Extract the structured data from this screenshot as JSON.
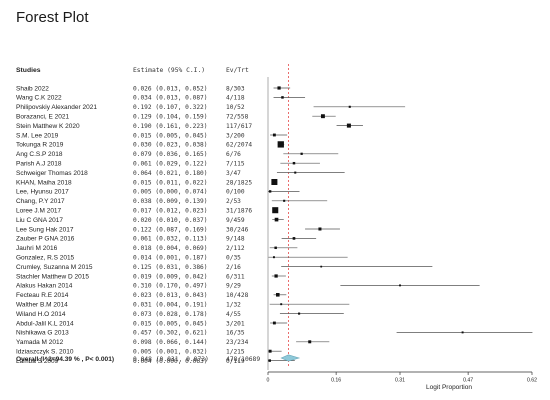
{
  "page": {
    "title": "Forest Plot"
  },
  "columns": {
    "studies": "Studies",
    "estimate": "Estimate (95% C.I.)",
    "events": "Ev/Trt"
  },
  "overall": {
    "label": "Overall (I^2=94.39 % , P< 0.001)",
    "estimate_text": "0.048 (0.031, 0.073)",
    "events_text": "478/10689"
  },
  "colors": {
    "reference_line": "#e64a4a",
    "marker": "#111111",
    "ci_line": "#555555",
    "diamond": "#8ec9d9",
    "diamond_stroke": "#6aa7b8"
  },
  "chart_data": {
    "type": "forest",
    "title": "Forest Plot",
    "xlabel": "Logit Proportion",
    "xlim": [
      0,
      0.62
    ],
    "xticks": [
      0,
      0.16,
      0.31,
      0.47,
      0.62
    ],
    "reference_line": 0.048,
    "studies": [
      {
        "name": "Shaib 2022",
        "est": 0.026,
        "lo": 0.013,
        "hi": 0.052,
        "estimate_text": "0.026 (0.013, 0.052)",
        "events_text": "8/303"
      },
      {
        "name": "Wang C.K 2022",
        "est": 0.034,
        "lo": 0.013,
        "hi": 0.087,
        "estimate_text": "0.034 (0.013, 0.087)",
        "events_text": "4/118"
      },
      {
        "name": "Philipovskiy Alexander 2021",
        "est": 0.192,
        "lo": 0.107,
        "hi": 0.322,
        "estimate_text": "0.192 (0.107, 0.322)",
        "events_text": "10/52"
      },
      {
        "name": "Borazanci, E   2021",
        "est": 0.129,
        "lo": 0.104,
        "hi": 0.159,
        "estimate_text": "0.129 (0.104, 0.159)",
        "events_text": "72/558"
      },
      {
        "name": "Stein Matthew K 2020",
        "est": 0.19,
        "lo": 0.161,
        "hi": 0.223,
        "estimate_text": "0.190 (0.161, 0.223)",
        "events_text": "117/617"
      },
      {
        "name": "S.M. Lee 2019",
        "est": 0.015,
        "lo": 0.005,
        "hi": 0.045,
        "estimate_text": "0.015 (0.005, 0.045)",
        "events_text": "3/200"
      },
      {
        "name": "Tokunga R  2019",
        "est": 0.03,
        "lo": 0.023,
        "hi": 0.038,
        "estimate_text": "0.030 (0.023, 0.038)",
        "events_text": "62/2074"
      },
      {
        "name": "Ang C.S.P 2018",
        "est": 0.079,
        "lo": 0.036,
        "hi": 0.165,
        "estimate_text": "0.079 (0.036, 0.165)",
        "events_text": "6/76"
      },
      {
        "name": "Parish A.J  2018",
        "est": 0.061,
        "lo": 0.029,
        "hi": 0.122,
        "estimate_text": "0.061 (0.029, 0.122)",
        "events_text": "7/115"
      },
      {
        "name": "Schweiger Thomas   2018",
        "est": 0.064,
        "lo": 0.021,
        "hi": 0.18,
        "estimate_text": "0.064 (0.021, 0.180)",
        "events_text": "3/47"
      },
      {
        "name": "KHAN, Maiha 2018",
        "est": 0.015,
        "lo": 0.011,
        "hi": 0.022,
        "estimate_text": "0.015 (0.011, 0.022)",
        "events_text": "28/1825"
      },
      {
        "name": "Lee, Hyunsu 2017",
        "est": 0.005,
        "lo": 0.0,
        "hi": 0.074,
        "estimate_text": "0.005 (0.000, 0.074)",
        "events_text": "0/100"
      },
      {
        "name": "Chang, P.Y 2017",
        "est": 0.038,
        "lo": 0.009,
        "hi": 0.139,
        "estimate_text": "0.038 (0.009, 0.139)",
        "events_text": "2/53"
      },
      {
        "name": "Loree J.M 2017",
        "est": 0.017,
        "lo": 0.012,
        "hi": 0.023,
        "estimate_text": "0.017 (0.012, 0.023)",
        "events_text": "31/1876"
      },
      {
        "name": "Liu C   GNA 2017",
        "est": 0.02,
        "lo": 0.01,
        "hi": 0.037,
        "estimate_text": "0.020 (0.010, 0.037)",
        "events_text": "9/459"
      },
      {
        "name": "Lee Sung Hak 2017",
        "est": 0.122,
        "lo": 0.087,
        "hi": 0.169,
        "estimate_text": "0.122 (0.087, 0.169)",
        "events_text": "30/246"
      },
      {
        "name": "Zauber P GNA   2016",
        "est": 0.061,
        "lo": 0.032,
        "hi": 0.113,
        "estimate_text": "0.061 (0.032, 0.113)",
        "events_text": "9/148"
      },
      {
        "name": "Jauhri M   2016",
        "est": 0.018,
        "lo": 0.004,
        "hi": 0.069,
        "estimate_text": "0.018 (0.004, 0.069)",
        "events_text": "2/112"
      },
      {
        "name": "Gonzalez, R.S 2015",
        "est": 0.014,
        "lo": 0.001,
        "hi": 0.187,
        "estimate_text": "0.014 (0.001, 0.187)",
        "events_text": "0/35"
      },
      {
        "name": "Crumley, Suzanna M 2015",
        "est": 0.125,
        "lo": 0.031,
        "hi": 0.386,
        "estimate_text": "0.125 (0.031, 0.386)",
        "events_text": "2/16"
      },
      {
        "name": "Stachler Matthew D 2015",
        "est": 0.019,
        "lo": 0.009,
        "hi": 0.042,
        "estimate_text": "0.019 (0.009, 0.042)",
        "events_text": "6/311"
      },
      {
        "name": "Alakus Hakan 2014",
        "est": 0.31,
        "lo": 0.17,
        "hi": 0.497,
        "estimate_text": "0.310 (0.170, 0.497)",
        "events_text": "9/29"
      },
      {
        "name": "Fecteau R.E 2014",
        "est": 0.023,
        "lo": 0.013,
        "hi": 0.043,
        "estimate_text": "0.023 (0.013, 0.043)",
        "events_text": "10/428"
      },
      {
        "name": "Walther B.M    2014",
        "est": 0.031,
        "lo": 0.004,
        "hi": 0.191,
        "estimate_text": "0.031 (0.004, 0.191)",
        "events_text": "1/32"
      },
      {
        "name": "Wiland H.O 2014",
        "est": 0.073,
        "lo": 0.028,
        "hi": 0.178,
        "estimate_text": "0.073 (0.028, 0.178)",
        "events_text": "4/55"
      },
      {
        "name": "Abdul-Jalil K.L 2014",
        "est": 0.015,
        "lo": 0.005,
        "hi": 0.045,
        "estimate_text": "0.015 (0.005, 0.045)",
        "events_text": "3/201"
      },
      {
        "name": "Nishikawa G 2013",
        "est": 0.457,
        "lo": 0.302,
        "hi": 0.621,
        "estimate_text": "0.457 (0.302, 0.621)",
        "events_text": "16/35"
      },
      {
        "name": "Yamada M 2012",
        "est": 0.098,
        "lo": 0.066,
        "hi": 0.144,
        "estimate_text": "0.098 (0.066, 0.144)",
        "events_text": "23/234"
      },
      {
        "name": "Idziaszczyk S. 2010",
        "est": 0.005,
        "lo": 0.001,
        "hi": 0.032,
        "estimate_text": "0.005 (0.001, 0.032)",
        "events_text": "1/215"
      },
      {
        "name": "Lamba S  2009",
        "est": 0.004,
        "lo": 0.0,
        "hi": 0.063,
        "estimate_text": "0.004 (0.000, 0.063)",
        "events_text": "0/119"
      }
    ],
    "overall": {
      "est": 0.048,
      "lo": 0.031,
      "hi": 0.073
    }
  }
}
